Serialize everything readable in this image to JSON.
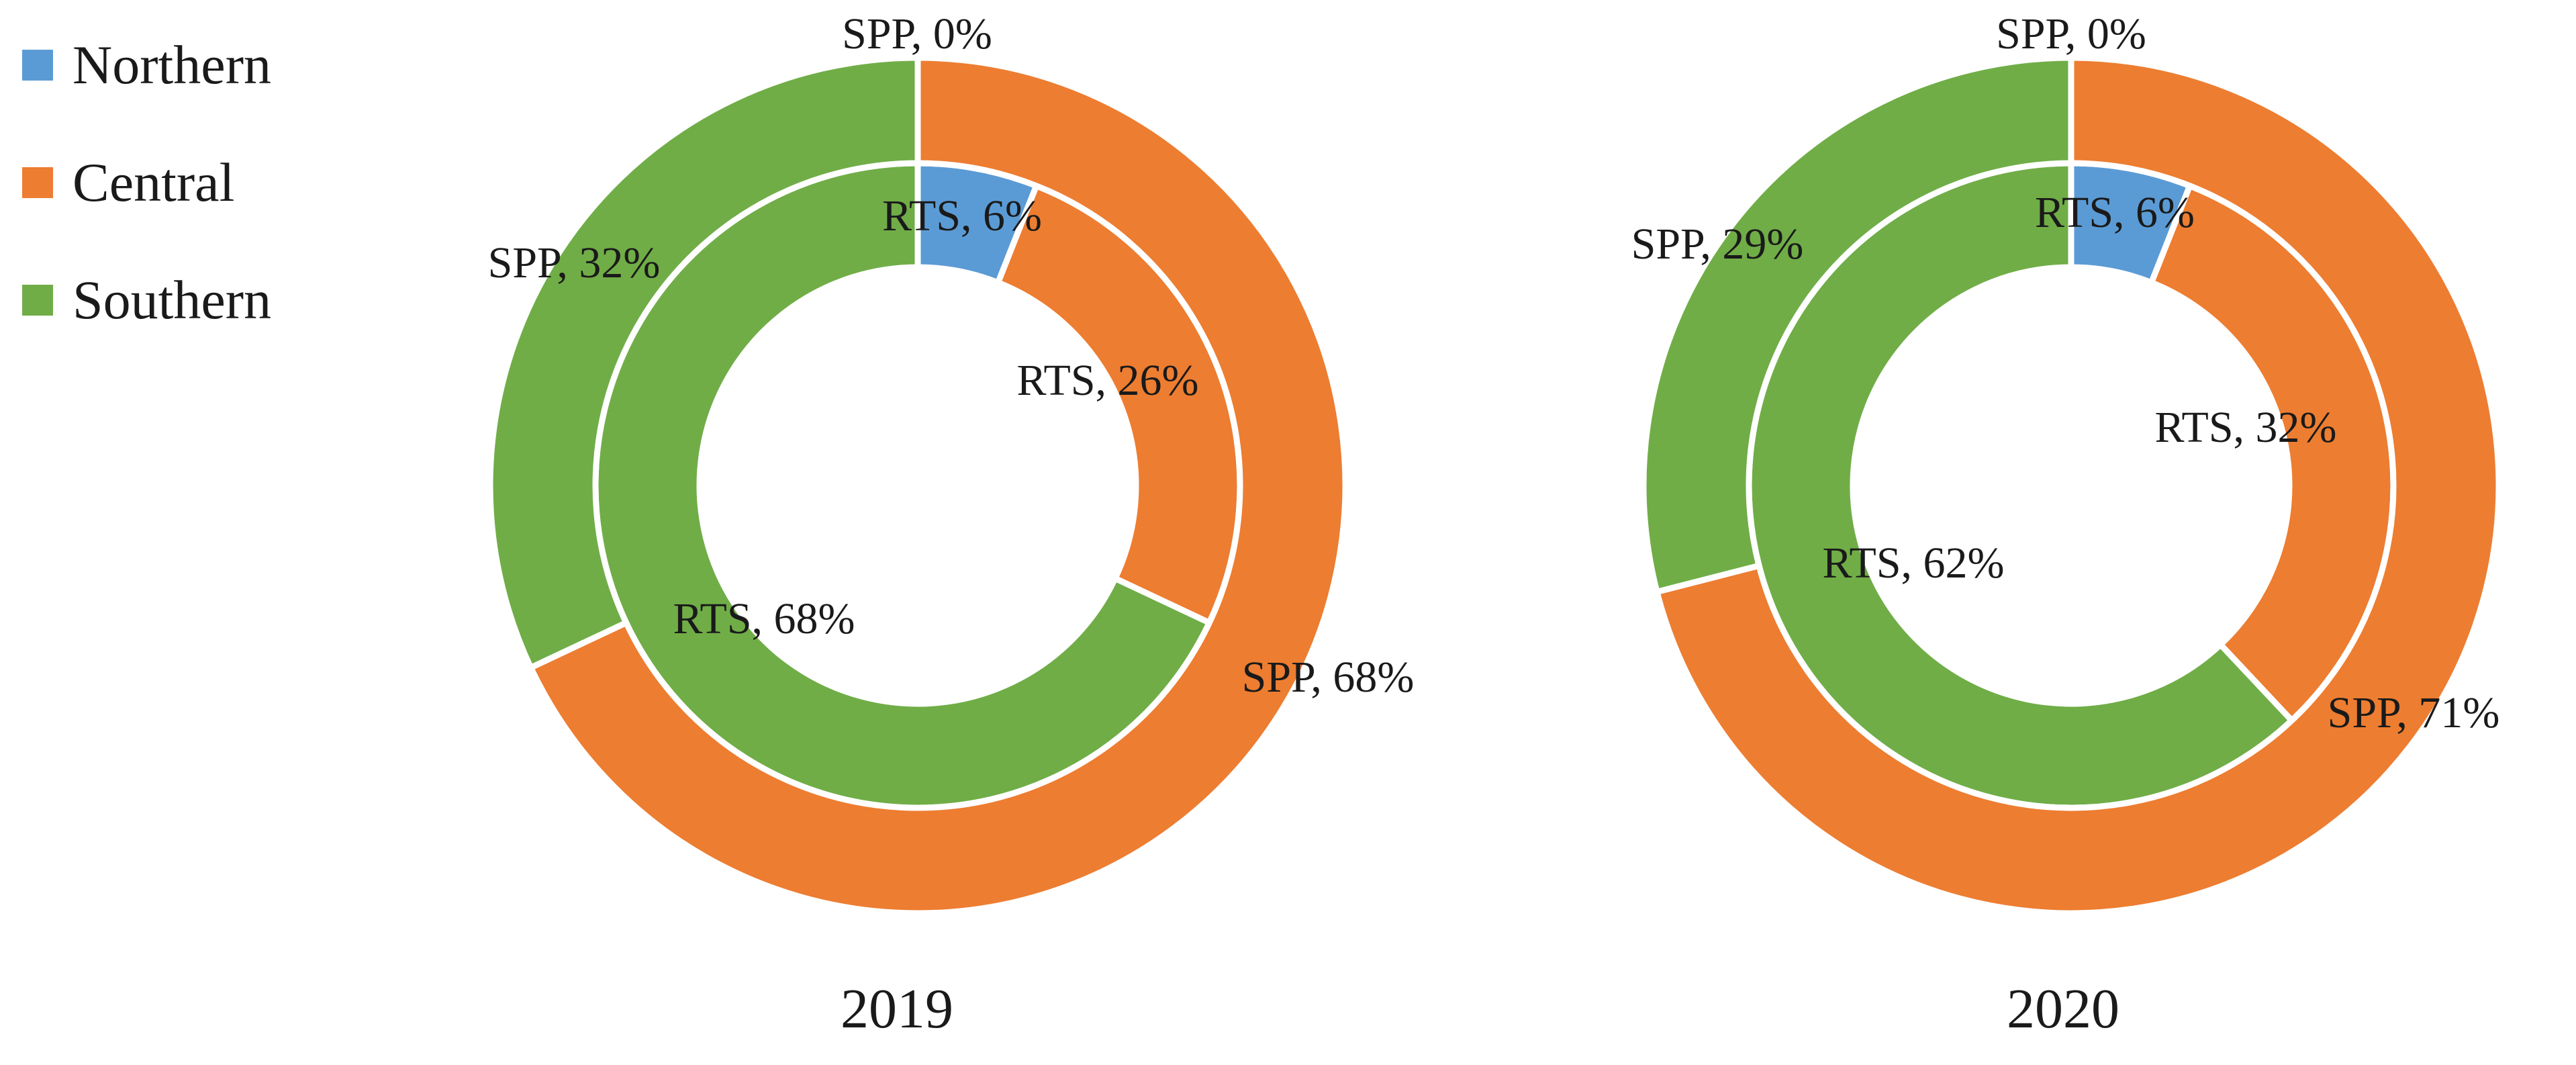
{
  "chart_data": {
    "type": "pie",
    "subtype": "nested-donut",
    "legend": {
      "placement": "top-left",
      "entries": [
        {
          "name": "Northern",
          "color": "#5b9bd5"
        },
        {
          "name": "Central",
          "color": "#ed7d31"
        },
        {
          "name": "Southern",
          "color": "#70ad47"
        }
      ]
    },
    "charts": [
      {
        "title": "2019",
        "rings": [
          {
            "name": "RTS",
            "position": "inner",
            "slices": [
              {
                "category": "Northern",
                "value": 6,
                "label": "RTS, 6%"
              },
              {
                "category": "Central",
                "value": 26,
                "label": "RTS, 26%"
              },
              {
                "category": "Southern",
                "value": 68,
                "label": "RTS, 68%"
              }
            ]
          },
          {
            "name": "SPP",
            "position": "outer",
            "slices": [
              {
                "category": "Northern",
                "value": 0,
                "label": "SPP, 0%"
              },
              {
                "category": "Central",
                "value": 68,
                "label": "SPP, 68%"
              },
              {
                "category": "Southern",
                "value": 32,
                "label": "SPP, 32%"
              }
            ]
          }
        ]
      },
      {
        "title": "2020",
        "rings": [
          {
            "name": "RTS",
            "position": "inner",
            "slices": [
              {
                "category": "Northern",
                "value": 6,
                "label": "RTS, 6%"
              },
              {
                "category": "Central",
                "value": 32,
                "label": "RTS, 32%"
              },
              {
                "category": "Southern",
                "value": 62,
                "label": "RTS, 62%"
              }
            ]
          },
          {
            "name": "SPP",
            "position": "outer",
            "slices": [
              {
                "category": "Northern",
                "value": 0,
                "label": "SPP, 0%"
              },
              {
                "category": "Central",
                "value": 71,
                "label": "SPP, 71%"
              },
              {
                "category": "Southern",
                "value": 29,
                "label": "SPP, 29%"
              }
            ]
          }
        ]
      }
    ]
  }
}
